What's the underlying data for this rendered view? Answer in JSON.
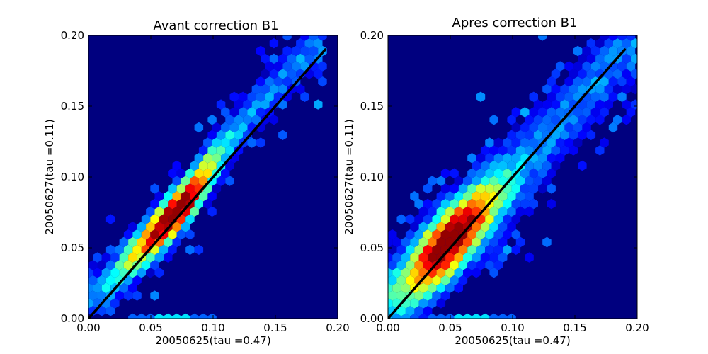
{
  "chart_data": [
    {
      "type": "heatmap",
      "subtype": "hexbin",
      "title": "Avant correction B1",
      "xlabel": "20050625(tau =0.47)",
      "ylabel": "20050627(tau =0.11)",
      "xlim": [
        0.0,
        0.2
      ],
      "ylim": [
        0.0,
        0.2
      ],
      "xticks": [
        "0.00",
        "0.05",
        "0.10",
        "0.15",
        "0.20"
      ],
      "yticks": [
        "0.00",
        "0.05",
        "0.10",
        "0.15",
        "0.20"
      ],
      "grid": false,
      "colormap": "jet",
      "background": "#00007f",
      "distribution": {
        "ridge": [
          [
            0.01,
            0.018
          ],
          [
            0.05,
            0.055
          ],
          [
            0.08,
            0.085
          ],
          [
            0.11,
            0.125
          ],
          [
            0.15,
            0.165
          ],
          [
            0.18,
            0.19
          ]
        ],
        "core_center": [
          0.068,
          0.075
        ],
        "spread_across": 0.012,
        "bottom_row_y": 0.0
      },
      "reference_line": {
        "x": [
          0.0,
          0.19
        ],
        "y": [
          0.0,
          0.19
        ],
        "color": "#000000"
      }
    },
    {
      "type": "heatmap",
      "subtype": "hexbin",
      "title": "Apres correction B1",
      "xlabel": "20050625(tau =0.47)",
      "ylabel": "20050627(tau =0.11)",
      "xlim": [
        0.0,
        0.2
      ],
      "ylim": [
        0.0,
        0.2
      ],
      "xticks": [
        "0.00",
        "0.05",
        "0.10",
        "0.15",
        "0.20"
      ],
      "yticks": [
        "0.00",
        "0.05",
        "0.10",
        "0.15",
        "0.20"
      ],
      "grid": false,
      "colormap": "jet",
      "background": "#00007f",
      "distribution": {
        "ridge": [
          [
            0.005,
            0.01
          ],
          [
            0.04,
            0.045
          ],
          [
            0.08,
            0.085
          ],
          [
            0.12,
            0.12
          ],
          [
            0.16,
            0.16
          ],
          [
            0.19,
            0.19
          ]
        ],
        "core_center": [
          0.05,
          0.055
        ],
        "spread_across": 0.02,
        "bottom_row_y": 0.0
      },
      "reference_line": {
        "x": [
          0.0,
          0.19
        ],
        "y": [
          0.0,
          0.19
        ],
        "color": "#000000"
      }
    }
  ]
}
